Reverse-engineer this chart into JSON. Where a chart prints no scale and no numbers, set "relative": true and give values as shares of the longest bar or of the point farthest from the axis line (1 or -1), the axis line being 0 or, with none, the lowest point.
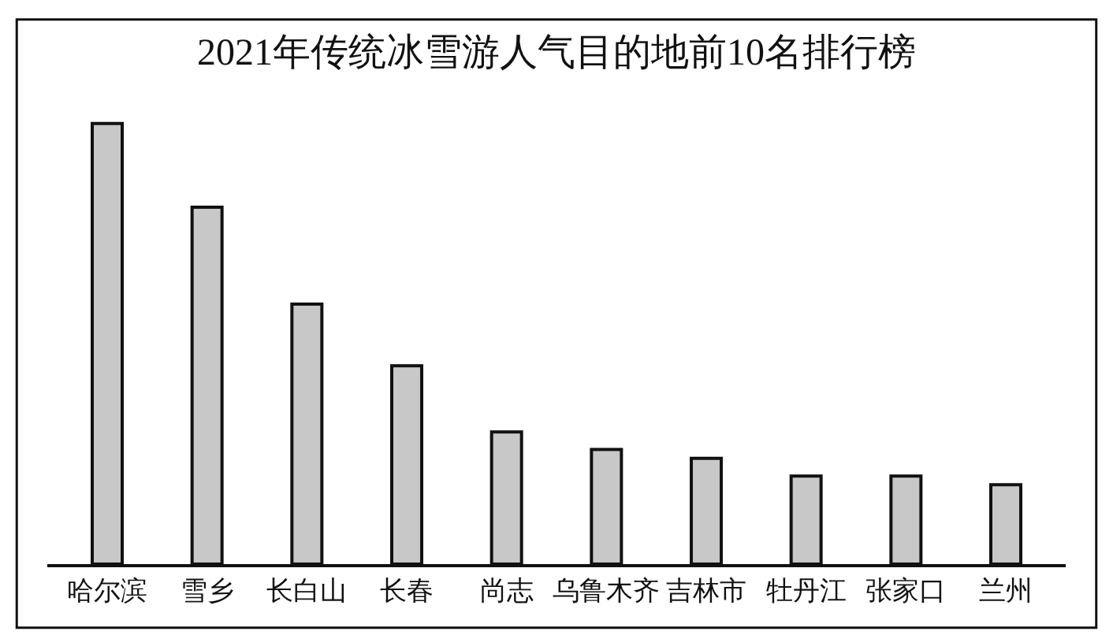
{
  "chart_data": {
    "type": "bar",
    "title": "2021年传统冰雪游人气目的地前10名排行榜",
    "relative": true,
    "categories": [
      "哈尔滨",
      "雪乡",
      "长白山",
      "长春",
      "尚志",
      "乌鲁木齐",
      "吉林市",
      "牡丹江",
      "张家口",
      "兰州"
    ],
    "values": [
      1,
      0.81,
      0.59,
      0.45,
      0.3,
      0.26,
      0.24,
      0.2,
      0.2,
      0.18
    ],
    "color": "#c8c8c8"
  }
}
